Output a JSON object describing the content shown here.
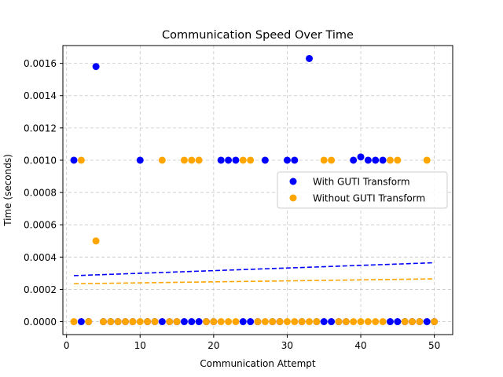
{
  "chart_data": {
    "type": "scatter",
    "title": "Communication Speed Over Time",
    "xlabel": "Communication Attempt",
    "ylabel": "Time (seconds)",
    "xlim": [
      -0.5,
      52.5
    ],
    "ylim": [
      -8e-05,
      0.00171
    ],
    "xticks": [
      0,
      10,
      20,
      30,
      40,
      50
    ],
    "xtick_labels": [
      "0",
      "10",
      "20",
      "30",
      "40",
      "50"
    ],
    "yticks": [
      0,
      0.0002,
      0.0004,
      0.0006,
      0.0008,
      0.001,
      0.0012,
      0.0014,
      0.0016
    ],
    "ytick_labels": [
      "0.0000",
      "0.0002",
      "0.0004",
      "0.0006",
      "0.0008",
      "0.0010",
      "0.0012",
      "0.0014",
      "0.0016"
    ],
    "grid": true,
    "legend_position": "center-right",
    "series": [
      {
        "name": "With GUTI Transform",
        "color": "#0000ff",
        "x": [
          1,
          2,
          3,
          4,
          5,
          6,
          7,
          8,
          9,
          10,
          11,
          12,
          13,
          14,
          15,
          16,
          17,
          18,
          19,
          20,
          21,
          22,
          23,
          24,
          25,
          26,
          27,
          28,
          29,
          30,
          31,
          32,
          33,
          34,
          35,
          36,
          37,
          38,
          39,
          40,
          41,
          42,
          43,
          44,
          45,
          46,
          47,
          48,
          49,
          50
        ],
        "y": [
          0.001,
          0,
          0,
          0.00158,
          0,
          0,
          0,
          0,
          0,
          0.001,
          0,
          0,
          0,
          0,
          0,
          0,
          0,
          0,
          0,
          0,
          0.001,
          0.001,
          0.001,
          0,
          0,
          0,
          0.001,
          0,
          0,
          0.001,
          0.001,
          0,
          0.00163,
          0,
          0,
          0,
          0,
          0,
          0.001,
          0.00102,
          0.001,
          0.001,
          0.001,
          0,
          0,
          0,
          0,
          0,
          0,
          0
        ],
        "trend": {
          "y_start": 0.000285,
          "y_end": 0.000365
        }
      },
      {
        "name": "Without GUTI Transform",
        "color": "#ffa500",
        "x": [
          1,
          2,
          3,
          4,
          5,
          6,
          7,
          8,
          9,
          10,
          11,
          12,
          13,
          14,
          15,
          16,
          17,
          18,
          19,
          20,
          21,
          22,
          23,
          24,
          25,
          26,
          27,
          28,
          29,
          30,
          31,
          32,
          33,
          34,
          35,
          36,
          37,
          38,
          39,
          40,
          41,
          42,
          43,
          44,
          45,
          46,
          47,
          48,
          49,
          50
        ],
        "y": [
          0,
          0.001,
          0,
          0.0005,
          0,
          0,
          0,
          0,
          0,
          0,
          0,
          0,
          0.001,
          0,
          0,
          0.001,
          0.001,
          0.001,
          0,
          0,
          0,
          0,
          0,
          0.001,
          0.001,
          0,
          0,
          0,
          0,
          0,
          0,
          0,
          0,
          0,
          0.001,
          0.001,
          0,
          0,
          0,
          0,
          0,
          0,
          0,
          0.001,
          0.001,
          0,
          0,
          0,
          0.001,
          0
        ],
        "trend": {
          "y_start": 0.000235,
          "y_end": 0.000265
        }
      }
    ]
  }
}
